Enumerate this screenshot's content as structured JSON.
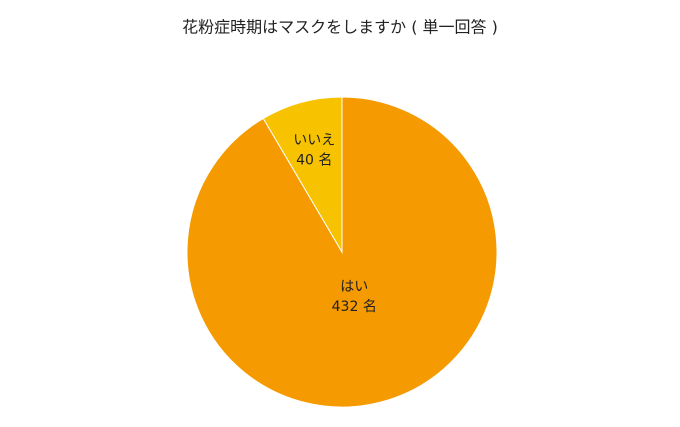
{
  "chart_data": {
    "type": "pie",
    "title": "花粉症時期はマスクをしますか ( 単一回答 )",
    "categories": [
      "はい",
      "いいえ"
    ],
    "values": [
      432,
      40
    ],
    "value_labels": [
      "432 名",
      "40 名"
    ],
    "colors": [
      "#f59a00",
      "#f7c300"
    ]
  }
}
